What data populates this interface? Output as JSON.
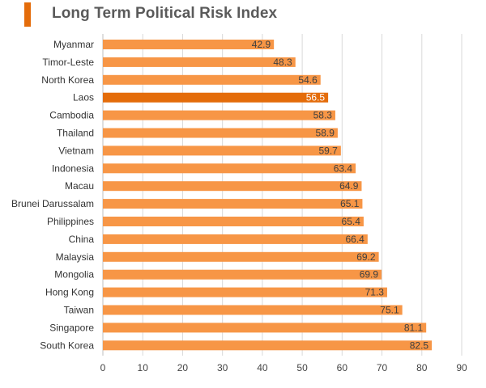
{
  "colors": {
    "accent": "#e46c0a",
    "bar": "#f79646",
    "highlight_bar": "#e46c0a",
    "grid": "#d9d9d9",
    "title_text": "#5a5a5a"
  },
  "chart_data": {
    "type": "bar",
    "orientation": "horizontal",
    "title": "Long Term Political Risk Index",
    "categories": [
      "Myanmar",
      "Timor-Leste",
      "North Korea",
      "Laos",
      "Cambodia",
      "Thailand",
      "Vietnam",
      "Indonesia",
      "Macau",
      "Brunei Darussalam",
      "Philippines",
      "China",
      "Malaysia",
      "Mongolia",
      "Hong Kong",
      "Taiwan",
      "Singapore",
      "South Korea"
    ],
    "values": [
      42.9,
      48.3,
      54.6,
      56.5,
      58.3,
      58.9,
      59.7,
      63.4,
      64.9,
      65.1,
      65.4,
      66.4,
      69.2,
      69.9,
      71.3,
      75.1,
      81.1,
      82.5
    ],
    "value_labels": [
      "42.9",
      "48.3",
      "54.6",
      "56.5",
      "58.3",
      "58.9",
      "59.7",
      "63.4",
      "64.9",
      "65.1",
      "65.4",
      "66.4",
      "69.2",
      "69.9",
      "71.3",
      "75.1",
      "81.1",
      "82.5"
    ],
    "highlighted_category": "Laos",
    "xlim": [
      0,
      90
    ],
    "xticks": [
      "0",
      "10",
      "20",
      "30",
      "40",
      "50",
      "60",
      "70",
      "80",
      "90"
    ],
    "xlabel": "",
    "ylabel": "",
    "grid": "vertical",
    "legend": "none"
  }
}
